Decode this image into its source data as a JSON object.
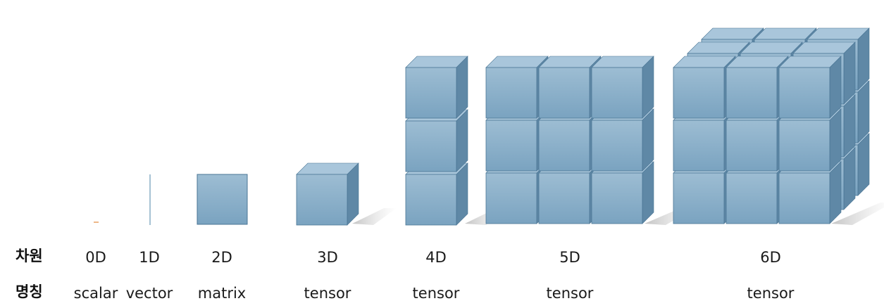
{
  "row_headers": {
    "dimension": "차원",
    "name": "명칭"
  },
  "columns": [
    {
      "dim": "0D",
      "name": "scalar"
    },
    {
      "dim": "1D",
      "name": "vector"
    },
    {
      "dim": "2D",
      "name": "matrix"
    },
    {
      "dim": "3D",
      "name": "tensor"
    },
    {
      "dim": "4D",
      "name": "tensor"
    },
    {
      "dim": "5D",
      "name": "tensor"
    },
    {
      "dim": "6D",
      "name": "tensor"
    }
  ],
  "colors": {
    "cube_front_top": "#9dbdd3",
    "cube_front_bottom": "#7fa6c2",
    "cube_top": "#a9c6db",
    "cube_side": "#5f88a6",
    "cube_edge": "#4a7594",
    "scalar_mark": "#e8a060",
    "vector_line": "#6a9ab8"
  }
}
